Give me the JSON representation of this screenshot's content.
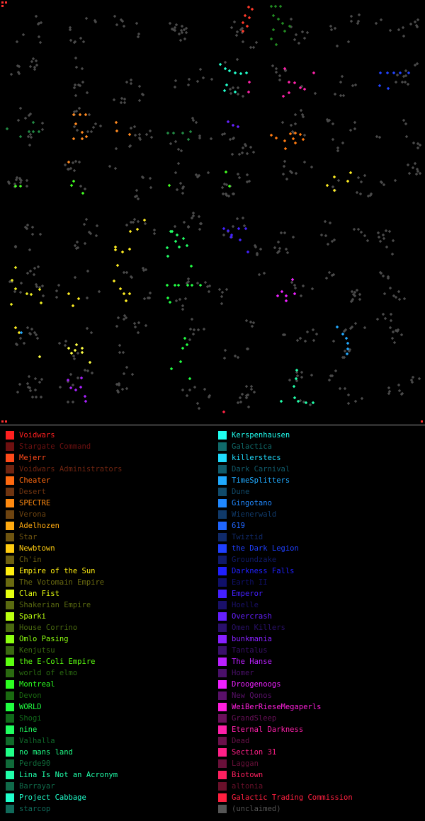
{
  "legend": {
    "left": [
      {
        "name": "Voidwars",
        "color": "#ff2020"
      },
      {
        "name": "Stargate Command",
        "color": "#6e1010"
      },
      {
        "name": "Mejerr",
        "color": "#ff4a1a"
      },
      {
        "name": "Voidwars Administrators",
        "color": "#6e2410"
      },
      {
        "name": "Cheater",
        "color": "#ff6a10"
      },
      {
        "name": "Desert",
        "color": "#6e3410"
      },
      {
        "name": "SPECTRE",
        "color": "#ff8a10"
      },
      {
        "name": "Verona",
        "color": "#6e4410"
      },
      {
        "name": "Adelhozen",
        "color": "#ffaa10"
      },
      {
        "name": "Star",
        "color": "#6e5410"
      },
      {
        "name": "Newbtown",
        "color": "#ffcc10"
      },
      {
        "name": "Ch'in",
        "color": "#6e6010"
      },
      {
        "name": "Empire of the Sun",
        "color": "#ffee10"
      },
      {
        "name": "The Votomain Empire",
        "color": "#6a6a10"
      },
      {
        "name": "Clan Fist",
        "color": "#e6ff10"
      },
      {
        "name": "Shakerian Empire",
        "color": "#5a6a10"
      },
      {
        "name": "Sparki",
        "color": "#bbff10"
      },
      {
        "name": "House Corrino",
        "color": "#4a6a10"
      },
      {
        "name": "Omlo Pasing",
        "color": "#8cff10"
      },
      {
        "name": "Kenjutsu",
        "color": "#3a6a10"
      },
      {
        "name": "the E-Coli Empire",
        "color": "#5cff10"
      },
      {
        "name": "world of elmo",
        "color": "#2a6a10"
      },
      {
        "name": "Montreal",
        "color": "#2cff20"
      },
      {
        "name": "Devon",
        "color": "#1a6a10"
      },
      {
        "name": "WORLD",
        "color": "#20ff40"
      },
      {
        "name": "Shogi",
        "color": "#106a1a"
      },
      {
        "name": "nine",
        "color": "#20ff60"
      },
      {
        "name": "Valhalla",
        "color": "#106a2a"
      },
      {
        "name": "no mans land",
        "color": "#20ff88"
      },
      {
        "name": "Perde90",
        "color": "#106a3a"
      },
      {
        "name": "Lina Is Not an Acronym",
        "color": "#20ffaa"
      },
      {
        "name": "Barrayar",
        "color": "#106a4a"
      },
      {
        "name": "Project Cabbage",
        "color": "#20ffcc"
      },
      {
        "name": "starcop",
        "color": "#106a5a"
      }
    ],
    "right": [
      {
        "name": "Kerspenhausen",
        "color": "#20fff0"
      },
      {
        "name": "Galactica",
        "color": "#106a6a"
      },
      {
        "name": "killerstecs",
        "color": "#20ddff"
      },
      {
        "name": "Dark Carnival",
        "color": "#105a6a"
      },
      {
        "name": "TimeSplitters",
        "color": "#20aaff"
      },
      {
        "name": "Dune",
        "color": "#104a6a"
      },
      {
        "name": "Gingotano",
        "color": "#2088ff"
      },
      {
        "name": "Wienerwald",
        "color": "#103a6a"
      },
      {
        "name": "619",
        "color": "#2066ff"
      },
      {
        "name": "Twiztid",
        "color": "#102a6a"
      },
      {
        "name": "the Dark Legion",
        "color": "#2040ff"
      },
      {
        "name": "Groundzake",
        "color": "#101a6a"
      },
      {
        "name": "Darkness Falls",
        "color": "#2020ff"
      },
      {
        "name": "Earth II",
        "color": "#10106a"
      },
      {
        "name": "Emperor",
        "color": "#4420ff"
      },
      {
        "name": "Hoelle",
        "color": "#1a106a"
      },
      {
        "name": "Overcrash",
        "color": "#6620ff"
      },
      {
        "name": "Omen Killers",
        "color": "#2a106a"
      },
      {
        "name": "bunkmania",
        "color": "#8820ff"
      },
      {
        "name": "Tantalus",
        "color": "#3a106a"
      },
      {
        "name": "The Hanse",
        "color": "#bb20ff"
      },
      {
        "name": "Homer",
        "color": "#4a106a"
      },
      {
        "name": "Droogenoogs",
        "color": "#ee20ff"
      },
      {
        "name": "New Qonos",
        "color": "#5a106a"
      },
      {
        "name": "WeiBerRieseMegaperls",
        "color": "#ff20dd"
      },
      {
        "name": "GrandSleep",
        "color": "#6a105a"
      },
      {
        "name": "Eternal Darkness",
        "color": "#ff20aa"
      },
      {
        "name": "Dead",
        "color": "#6a104a"
      },
      {
        "name": "Section 31",
        "color": "#ff2088"
      },
      {
        "name": "Laggan",
        "color": "#6a103a"
      },
      {
        "name": "Biotown",
        "color": "#ff2060"
      },
      {
        "name": "altonia",
        "color": "#6a102a"
      },
      {
        "name": "Galactic Trading Commission",
        "color": "#ff2040"
      },
      {
        "name": "(unclaimed)",
        "color": "#555555"
      }
    ]
  },
  "map": {
    "clusters": [
      {
        "color": "#ff3a2a",
        "points": [
          [
            351,
            10
          ],
          [
            356,
            13
          ],
          [
            346,
            22
          ],
          [
            352,
            25
          ],
          [
            343,
            32
          ],
          [
            349,
            37
          ],
          [
            343,
            44
          ]
        ]
      },
      {
        "color": "#228a22",
        "points": [
          [
            383,
            9
          ],
          [
            389,
            9
          ],
          [
            396,
            9
          ],
          [
            386,
            22
          ],
          [
            393,
            27
          ],
          [
            399,
            33
          ],
          [
            409,
            37
          ],
          [
            386,
            42
          ],
          [
            383,
            55
          ],
          [
            390,
            63
          ],
          [
            402,
            44
          ]
        ]
      },
      {
        "color": "#22ffcc",
        "points": [
          [
            311,
            91
          ],
          [
            318,
            97
          ],
          [
            324,
            100
          ],
          [
            332,
            103
          ],
          [
            340,
            104
          ],
          [
            320,
            120
          ],
          [
            332,
            130
          ],
          [
            348,
            103
          ],
          [
            317,
            128
          ]
        ]
      },
      {
        "color": "#ff22aa",
        "points": [
          [
            402,
            97
          ],
          [
            408,
            116
          ],
          [
            416,
            117
          ],
          [
            424,
            124
          ],
          [
            408,
            131
          ],
          [
            400,
            136
          ],
          [
            430,
            126
          ],
          [
            443,
            103
          ],
          [
            352,
            116
          ],
          [
            351,
            130
          ]
        ]
      },
      {
        "color": "#2244ff",
        "points": [
          [
            537,
            103
          ],
          [
            547,
            103
          ],
          [
            556,
            103
          ],
          [
            565,
            103
          ],
          [
            577,
            103
          ],
          [
            536,
            121
          ],
          [
            548,
            125
          ]
        ]
      },
      {
        "color": "#ff8a20",
        "points": [
          [
            104,
            162
          ],
          [
            113,
            162
          ],
          [
            121,
            162
          ],
          [
            107,
            175
          ],
          [
            116,
            187
          ],
          [
            122,
            193
          ],
          [
            116,
            196
          ],
          [
            104,
            196
          ],
          [
            164,
            173
          ],
          [
            165,
            185
          ],
          [
            183,
            190
          ],
          [
            97,
            229
          ]
        ]
      },
      {
        "color": "#ff7a10",
        "points": [
          [
            383,
            191
          ],
          [
            390,
            195
          ],
          [
            402,
            199
          ],
          [
            410,
            189
          ],
          [
            417,
            188
          ],
          [
            424,
            190
          ],
          [
            414,
            196
          ],
          [
            417,
            202
          ],
          [
            428,
            197
          ],
          [
            403,
            210
          ]
        ]
      },
      {
        "color": "#228a44",
        "points": [
          [
            47,
            173
          ],
          [
            41,
            186
          ],
          [
            47,
            186
          ],
          [
            55,
            186
          ],
          [
            29,
            193
          ],
          [
            10,
            182
          ],
          [
            237,
            188
          ],
          [
            245,
            188
          ],
          [
            258,
            188
          ],
          [
            266,
            197
          ],
          [
            269,
            186
          ]
        ]
      },
      {
        "color": "#6622ff",
        "points": [
          [
            322,
            172
          ],
          [
            329,
            177
          ],
          [
            336,
            179
          ]
        ]
      },
      {
        "color": "#44ff22",
        "points": [
          [
            22,
            263
          ],
          [
            29,
            263
          ],
          [
            101,
            262
          ],
          [
            117,
            273
          ],
          [
            104,
            256
          ],
          [
            239,
            262
          ],
          [
            324,
            263
          ],
          [
            319,
            243
          ]
        ]
      },
      {
        "color": "#ffee22",
        "points": [
          [
            462,
            262
          ],
          [
            472,
            269
          ],
          [
            472,
            250
          ],
          [
            495,
            244
          ],
          [
            491,
            256
          ]
        ]
      },
      {
        "color": "#ffee22",
        "points": [
          [
            204,
            311
          ],
          [
            194,
            324
          ],
          [
            184,
            327
          ],
          [
            163,
            349
          ],
          [
            163,
            353
          ],
          [
            173,
            356
          ],
          [
            183,
            352
          ]
        ]
      },
      {
        "color": "#22ff66",
        "points": [
          [
            241,
            327
          ],
          [
            250,
            332
          ],
          [
            248,
            341
          ],
          [
            236,
            350
          ],
          [
            253,
            349
          ],
          [
            264,
            347
          ],
          [
            259,
            337
          ],
          [
            237,
            362
          ],
          [
            243,
            327
          ]
        ]
      },
      {
        "color": "#4422ff",
        "points": [
          [
            316,
            323
          ],
          [
            322,
            326
          ],
          [
            327,
            332
          ],
          [
            337,
            323
          ],
          [
            347,
            323
          ],
          [
            339,
            339
          ],
          [
            350,
            356
          ],
          [
            326,
            335
          ]
        ]
      },
      {
        "color": "#eeee22",
        "points": [
          [
            22,
            378
          ],
          [
            17,
            396
          ],
          [
            22,
            408
          ],
          [
            38,
            415
          ],
          [
            44,
            416
          ],
          [
            58,
            428
          ],
          [
            16,
            430
          ],
          [
            56,
            409
          ]
        ]
      },
      {
        "color": "#ffee22",
        "points": [
          [
            166,
            375
          ],
          [
            161,
            397
          ],
          [
            170,
            408
          ],
          [
            175,
            415
          ],
          [
            183,
            415
          ],
          [
            178,
            425
          ]
        ]
      },
      {
        "color": "#22ff44",
        "points": [
          [
            236,
            403
          ],
          [
            247,
            403
          ],
          [
            252,
            403
          ],
          [
            265,
            403
          ],
          [
            271,
            403
          ],
          [
            283,
            403
          ],
          [
            237,
            421
          ],
          [
            240,
            427
          ],
          [
            270,
            376
          ]
        ]
      },
      {
        "color": "#ee22ff",
        "points": [
          [
            392,
            418
          ],
          [
            404,
            418
          ],
          [
            416,
            415
          ],
          [
            404,
            425
          ],
          [
            398,
            412
          ],
          [
            413,
            395
          ]
        ]
      },
      {
        "color": "#ffee22",
        "points": [
          [
            97,
            415
          ],
          [
            103,
            432
          ],
          [
            111,
            422
          ],
          [
            22,
            463
          ],
          [
            27,
            470
          ]
        ]
      },
      {
        "color": "#ffff44",
        "points": [
          [
            97,
            492
          ],
          [
            101,
            499
          ],
          [
            106,
            495
          ],
          [
            116,
            492
          ],
          [
            116,
            498
          ],
          [
            108,
            487
          ],
          [
            127,
            512
          ],
          [
            56,
            504
          ]
        ]
      },
      {
        "color": "#22ff44",
        "points": [
          [
            261,
            478
          ],
          [
            258,
            492
          ],
          [
            264,
            487
          ],
          [
            255,
            511
          ],
          [
            242,
            521
          ],
          [
            268,
            535
          ]
        ]
      },
      {
        "color": "#22aaff",
        "points": [
          [
            476,
            462
          ],
          [
            484,
            472
          ],
          [
            489,
            478
          ],
          [
            491,
            485
          ],
          [
            491,
            493
          ],
          [
            490,
            500
          ],
          [
            30,
            470
          ]
        ]
      },
      {
        "color": "#22ffaa",
        "points": [
          [
            419,
            523
          ],
          [
            418,
            535
          ],
          [
            415,
            546
          ],
          [
            421,
            567
          ],
          [
            432,
            569
          ],
          [
            442,
            569
          ],
          [
            397,
            567
          ],
          [
            416,
            562
          ]
        ]
      },
      {
        "color": "#aa22ff",
        "points": [
          [
            96,
            537
          ],
          [
            100,
            548
          ],
          [
            107,
            551
          ],
          [
            114,
            547
          ],
          [
            120,
            560
          ],
          [
            121,
            567
          ],
          [
            115,
            534
          ]
        ]
      },
      {
        "color": "#ff2244",
        "points": [
          [
            316,
            582
          ]
        ]
      }
    ],
    "neutral_color": "#4a4a4a"
  }
}
